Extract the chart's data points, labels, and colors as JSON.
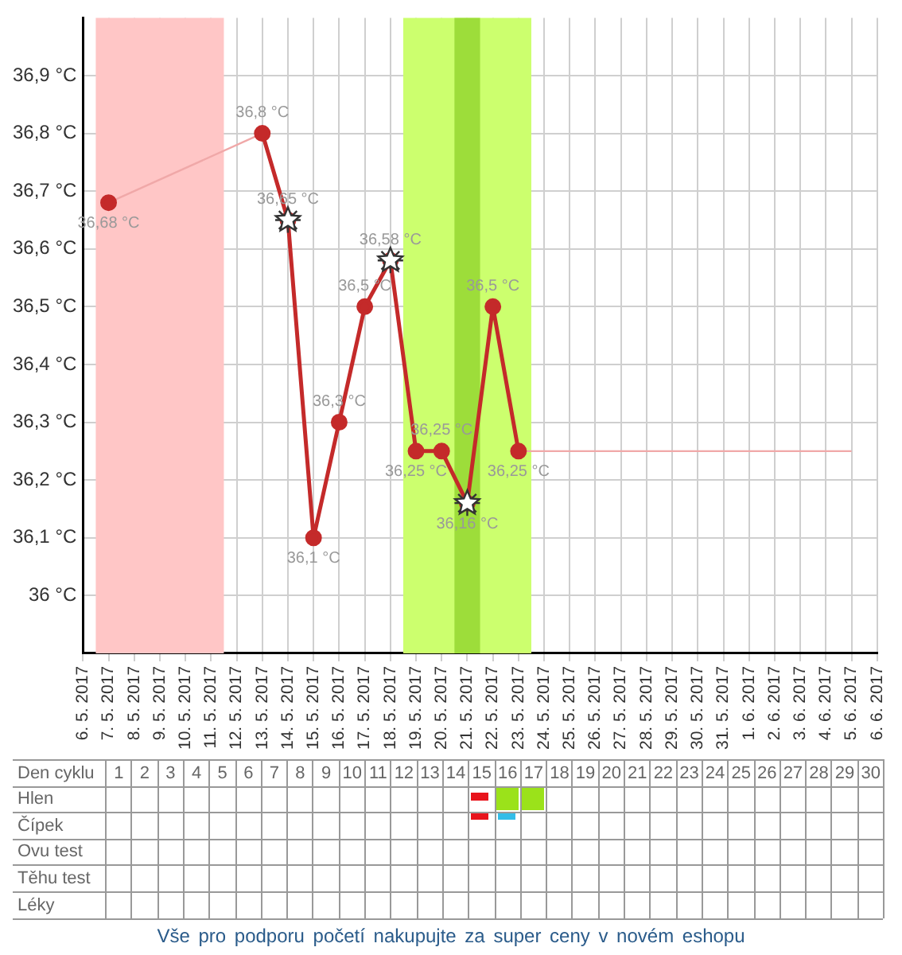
{
  "chart_data": {
    "type": "line",
    "categories": [
      "6. 5. 2017",
      "7. 5. 2017",
      "8. 5. 2017",
      "9. 5. 2017",
      "10. 5. 2017",
      "11. 5. 2017",
      "12. 5. 2017",
      "13. 5. 2017",
      "14. 5. 2017",
      "15. 5. 2017",
      "16. 5. 2017",
      "17. 5. 2017",
      "18. 5. 2017",
      "19. 5. 2017",
      "20. 5. 2017",
      "21. 5. 2017",
      "22. 5. 2017",
      "23. 5. 2017",
      "24. 5. 2017",
      "25. 5. 2017",
      "26. 5. 2017",
      "27. 5. 2017",
      "28. 5. 2017",
      "29. 5. 2017",
      "30. 5. 2017",
      "31. 5. 2017",
      "1. 6. 2017",
      "2. 6. 2017",
      "3. 6. 2017",
      "4. 6. 2017",
      "5. 6. 2017",
      "6. 6. 2017"
    ],
    "series": [
      {
        "color": "#f0a8a8",
        "marker": "none",
        "values": [
          null,
          36.68,
          null,
          null,
          null,
          null,
          null,
          36.8,
          null,
          null,
          null,
          null,
          null,
          null,
          null,
          null,
          null,
          null,
          null,
          null,
          null,
          null,
          null,
          null,
          null,
          null,
          null,
          null,
          null,
          null,
          null,
          null
        ]
      },
      {
        "color": "#f0a8a8",
        "marker": "none",
        "values": [
          null,
          null,
          null,
          null,
          null,
          null,
          null,
          null,
          null,
          null,
          null,
          null,
          null,
          null,
          null,
          null,
          null,
          36.25,
          null,
          null,
          null,
          null,
          null,
          null,
          null,
          null,
          null,
          null,
          null,
          null,
          36.25,
          null
        ]
      },
      {
        "color": "#c42a2a",
        "marker": "circle",
        "values": [
          null,
          36.68,
          null,
          null,
          null,
          null,
          null,
          36.8,
          36.65,
          36.1,
          36.3,
          36.5,
          36.58,
          36.25,
          36.25,
          36.16,
          36.5,
          36.25,
          null,
          null,
          null,
          null,
          null,
          null,
          null,
          null,
          null,
          null,
          null,
          null,
          null,
          null
        ],
        "value_labels": [
          null,
          "36,68 °C",
          null,
          null,
          null,
          null,
          null,
          "36,8 °C",
          "36,65 °C",
          "36,1 °C",
          "36,3 °C",
          "36,5 °C",
          "36,58 °C",
          "36,25 °C",
          "36,25 °C",
          "36,16 °C",
          "36,5 °C",
          "36,25 °C",
          null,
          null,
          null,
          null,
          null,
          null,
          null,
          null,
          null,
          null,
          null,
          null,
          null,
          null
        ]
      },
      {
        "type": "scatter",
        "color": "#ffffff",
        "marker": "star",
        "values": [
          null,
          null,
          null,
          null,
          null,
          null,
          null,
          null,
          36.65,
          null,
          null,
          null,
          36.58,
          null,
          null,
          36.16,
          null,
          null,
          null,
          null,
          null,
          null,
          null,
          null,
          null,
          null,
          null,
          null,
          null,
          null,
          null,
          null
        ]
      }
    ],
    "ylim": [
      35.9,
      37.0
    ],
    "yticks": [
      {
        "value": 36,
        "label": "36 °C"
      },
      {
        "value": 36.1,
        "label": "36,1 °C"
      },
      {
        "value": 36.2,
        "label": "36,2 °C"
      },
      {
        "value": 36.3,
        "label": "36,3 °C"
      },
      {
        "value": 36.4,
        "label": "36,4 °C"
      },
      {
        "value": 36.5,
        "label": "36,5 °C"
      },
      {
        "value": 36.6,
        "label": "36,6 °C"
      },
      {
        "value": 36.7,
        "label": "36,7 °C"
      },
      {
        "value": 36.8,
        "label": "36,8 °C"
      },
      {
        "value": 36.9,
        "label": "36,9 °C"
      }
    ],
    "bands": [
      {
        "axis": "x",
        "from": "7. 5. 2017",
        "to": "11. 5. 2017",
        "color": "#ffc6c6"
      },
      {
        "axis": "x",
        "from": "19. 5. 2017",
        "to": "23. 5. 2017",
        "color": "#ccff6e"
      },
      {
        "axis": "x",
        "from": "21. 5. 2017",
        "to": "21. 5. 2017",
        "color": "#9ddd3a"
      }
    ],
    "grid": true,
    "legend": false,
    "annotations": [
      "Den cyklu",
      "1",
      "2",
      "3",
      "4",
      "5",
      "6",
      "7",
      "8",
      "9",
      "10",
      "11",
      "12",
      "13",
      "14",
      "15",
      "16",
      "17",
      "18",
      "19",
      "20",
      "21",
      "22",
      "23",
      "24",
      "25",
      "26",
      "27",
      "28",
      "29",
      "30",
      "Hlen",
      "Čípek",
      "Ovu test",
      "Těhu test",
      "Léky",
      "Vše pro podporu početí nakupujte za super ceny v novém eshopu"
    ]
  }
}
